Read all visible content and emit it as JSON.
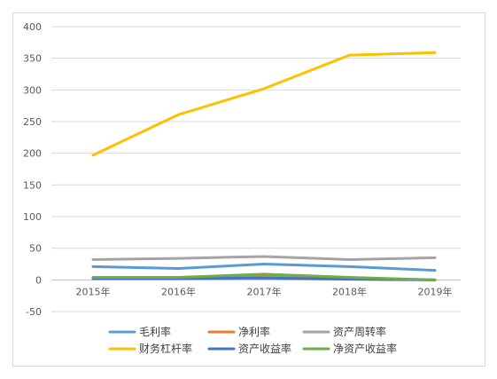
{
  "chart_data": {
    "type": "line",
    "title": "",
    "xlabel": "",
    "ylabel": "",
    "categories": [
      "2015年",
      "2016年",
      "2017年",
      "2018年",
      "2019年"
    ],
    "ylim": [
      -50,
      400
    ],
    "yticks": [
      -50,
      0,
      50,
      100,
      150,
      200,
      250,
      300,
      350,
      400
    ],
    "ytick_labels": [
      "-50",
      "0",
      "50",
      "100",
      "150",
      "200",
      "250",
      "300",
      "350",
      "400"
    ],
    "grid": true,
    "legend_position": "bottom",
    "series": [
      {
        "name": "毛利率",
        "color": "#5b9bd5",
        "values": [
          21,
          18,
          25,
          21,
          15
        ]
      },
      {
        "name": "净利率",
        "color": "#ed7d31",
        "values": [
          2,
          2,
          7,
          3,
          0
        ]
      },
      {
        "name": "资产周转率",
        "color": "#a5a5a5",
        "values": [
          32,
          34,
          37,
          32,
          35
        ]
      },
      {
        "name": "财务杠杆率",
        "color": "#ffc000",
        "values": [
          197,
          261,
          302,
          355,
          359
        ]
      },
      {
        "name": "资产收益率",
        "color": "#4472c4",
        "values": [
          2,
          2,
          3,
          1,
          0
        ]
      },
      {
        "name": "净资产收益率",
        "color": "#70ad47",
        "values": [
          4,
          4,
          9,
          4,
          0
        ]
      }
    ]
  }
}
